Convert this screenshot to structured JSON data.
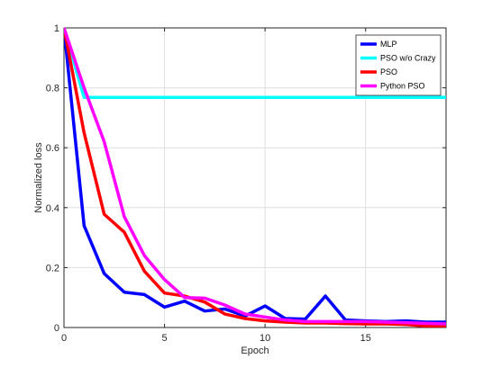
{
  "chart_data": {
    "type": "line",
    "title": "",
    "xlabel": "Epoch",
    "ylabel": "Normalized loss",
    "xlim": [
      0,
      19
    ],
    "ylim": [
      0,
      1
    ],
    "xticks": [
      0,
      5,
      10,
      15
    ],
    "yticks": [
      0,
      0.2,
      0.4,
      0.6,
      0.8,
      1
    ],
    "grid": true,
    "legend_position": "top-right",
    "x": [
      0,
      1,
      2,
      3,
      4,
      5,
      6,
      7,
      8,
      9,
      10,
      11,
      12,
      13,
      14,
      15,
      16,
      17,
      18,
      19
    ],
    "series": [
      {
        "name": "MLP",
        "color": "#0000ff",
        "values": [
          1,
          0.34,
          0.18,
          0.118,
          0.11,
          0.068,
          0.088,
          0.055,
          0.062,
          0.038,
          0.072,
          0.03,
          0.028,
          0.105,
          0.025,
          0.022,
          0.02,
          0.022,
          0.018,
          0.018
        ]
      },
      {
        "name": "PSO w/o Crazy",
        "color": "#00ffff",
        "values": [
          1,
          0.768,
          0.768,
          0.768,
          0.768,
          0.768,
          0.768,
          0.768,
          0.768,
          0.768,
          0.768,
          0.768,
          0.768,
          0.768,
          0.768,
          0.768,
          0.768,
          0.768,
          0.768,
          0.768
        ]
      },
      {
        "name": "PSO",
        "color": "#ff0000",
        "values": [
          1,
          0.65,
          0.378,
          0.318,
          0.188,
          0.115,
          0.105,
          0.085,
          0.045,
          0.03,
          0.022,
          0.018,
          0.015,
          0.015,
          0.013,
          0.012,
          0.012,
          0.01,
          0.005,
          0.005
        ]
      },
      {
        "name": "Python PSO",
        "color": "#ff00ff",
        "values": [
          1,
          0.8,
          0.62,
          0.37,
          0.24,
          0.16,
          0.1,
          0.098,
          0.075,
          0.045,
          0.035,
          0.025,
          0.02,
          0.02,
          0.02,
          0.02,
          0.018,
          0.016,
          0.014,
          0.012
        ]
      }
    ]
  }
}
